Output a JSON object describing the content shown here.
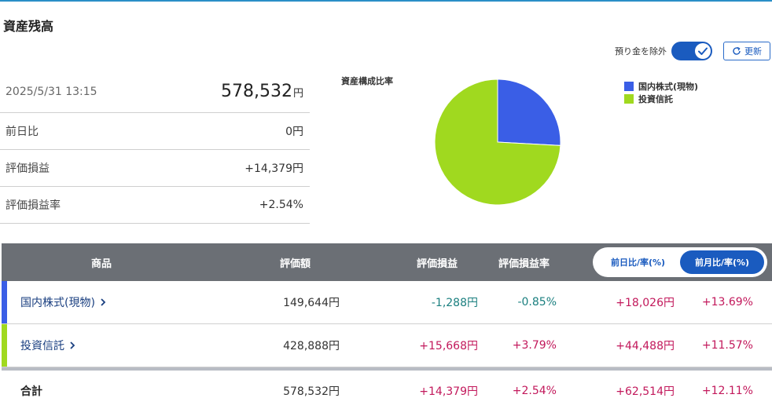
{
  "title": "資産残高",
  "toggle": {
    "label": "預り金を除外",
    "checked": true
  },
  "refresh_label": "更新",
  "summary": {
    "datetime": "2025/5/31 13:15",
    "total": "578,532",
    "total_unit": "円",
    "rows": [
      {
        "label": "前日比",
        "value": "0円"
      },
      {
        "label": "評価損益",
        "value": "+14,379円"
      },
      {
        "label": "評価損益率",
        "value": "+2.54%"
      }
    ]
  },
  "chart_data": {
    "type": "pie",
    "title": "資産構成比率",
    "categories": [
      "国内株式(現物)",
      "投資信託"
    ],
    "values": [
      149644,
      428888
    ],
    "colors": [
      "#3a5ee6",
      "#a0d91f"
    ],
    "legend_position": "top-right"
  },
  "table": {
    "headers": {
      "product": "商品",
      "valuation": "評価額",
      "pl": "評価損益",
      "pl_rate": "評価損益率",
      "seg_day": "前日比/率(%)",
      "seg_month": "前月比/率(%)"
    },
    "rows": [
      {
        "name": "国内株式(現物)",
        "valuation": "149,644円",
        "pl": "-1,288円",
        "pl_rate": "-0.85%",
        "change": "+18,026円",
        "change_rate": "+13.69%",
        "color": "#3a5ee6"
      },
      {
        "name": "投資信託",
        "valuation": "428,888円",
        "pl": "+15,668円",
        "pl_rate": "+3.79%",
        "change": "+44,488円",
        "change_rate": "+11.57%",
        "color": "#a0d91f"
      }
    ],
    "total": {
      "name": "合計",
      "valuation": "578,532円",
      "pl": "+14,379円",
      "pl_rate": "+2.54%",
      "change": "+62,514円",
      "change_rate": "+12.11%"
    }
  }
}
